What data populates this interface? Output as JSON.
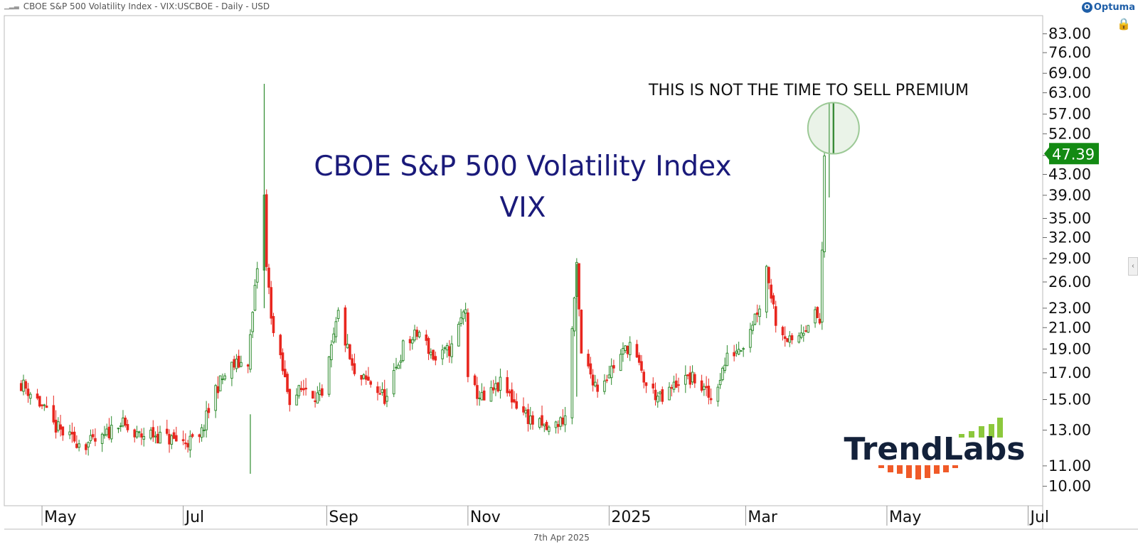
{
  "header": {
    "title": "CBOE S&P 500 Volatility Index - VIX:USCBOE - Daily - USD",
    "brand": "Optuma"
  },
  "footer": {
    "date": "7th Apr 2025"
  },
  "brand_logo": {
    "text": "TrendLabs"
  },
  "colors": {
    "up": "#2e8b2e",
    "down": "#e8261f",
    "title": "#1a1a7a",
    "last_bg": "#138a13"
  },
  "chart_data": {
    "type": "candlestick",
    "title": "CBOE S&P 500 Volatility Index",
    "subtitle": "VIX",
    "annotation": "THIS IS NOT THE TIME TO SELL PREMIUM",
    "last_value": "47.39",
    "y_scale": "log",
    "ylim": [
      9.5,
      88
    ],
    "y_ticks": [
      "83.00",
      "76.00",
      "69.00",
      "63.00",
      "57.00",
      "52.00",
      "47.00",
      "43.00",
      "39.00",
      "35.00",
      "32.00",
      "29.00",
      "26.00",
      "23.00",
      "21.00",
      "19.00",
      "17.00",
      "15.00",
      "13.00",
      "11.00",
      "10.00"
    ],
    "x_ticks": [
      "May",
      "Jul",
      "Sep",
      "Nov",
      "2025",
      "Mar",
      "May",
      "Jul"
    ],
    "x_tick_dates": [
      "2024-05-01",
      "2024-07-01",
      "2024-09-01",
      "2024-11-01",
      "2025-01-01",
      "2025-03-01",
      "2025-05-01",
      "2025-07-01"
    ],
    "series_anchors": [
      [
        "2024-04-22",
        16.2
      ],
      [
        "2024-04-29",
        15.0
      ],
      [
        "2024-05-06",
        13.3
      ],
      [
        "2024-05-13",
        12.5
      ],
      [
        "2024-05-20",
        12.2
      ],
      [
        "2024-05-27",
        12.4
      ],
      [
        "2024-06-03",
        13.6
      ],
      [
        "2024-06-10",
        12.6
      ],
      [
        "2024-06-17",
        12.8
      ],
      [
        "2024-06-24",
        12.5
      ],
      [
        "2024-07-01",
        12.3
      ],
      [
        "2024-07-08",
        12.4
      ],
      [
        "2024-07-15",
        15.8
      ],
      [
        "2024-07-22",
        17.5
      ],
      [
        "2024-07-29",
        18.0
      ],
      [
        "2024-08-05",
        38.6
      ],
      [
        "2024-08-06",
        27.7
      ],
      [
        "2024-08-09",
        20.4
      ],
      [
        "2024-08-16",
        15.1
      ],
      [
        "2024-08-23",
        15.9
      ],
      [
        "2024-08-30",
        15.0
      ],
      [
        "2024-09-06",
        22.4
      ],
      [
        "2024-09-13",
        16.6
      ],
      [
        "2024-09-20",
        16.2
      ],
      [
        "2024-09-27",
        15.0
      ],
      [
        "2024-10-04",
        19.2
      ],
      [
        "2024-10-11",
        20.5
      ],
      [
        "2024-10-18",
        18.0
      ],
      [
        "2024-10-25",
        19.1
      ],
      [
        "2024-10-31",
        23.2
      ],
      [
        "2024-11-01",
        16.2
      ],
      [
        "2024-11-08",
        14.9
      ],
      [
        "2024-11-15",
        16.1
      ],
      [
        "2024-11-22",
        14.7
      ],
      [
        "2024-11-29",
        13.5
      ],
      [
        "2024-12-06",
        13.0
      ],
      [
        "2024-12-13",
        13.8
      ],
      [
        "2024-12-18",
        27.6
      ],
      [
        "2024-12-20",
        18.4
      ],
      [
        "2024-12-27",
        15.9
      ],
      [
        "2025-01-03",
        17.6
      ],
      [
        "2025-01-10",
        19.5
      ],
      [
        "2025-01-17",
        16.0
      ],
      [
        "2025-01-24",
        14.9
      ],
      [
        "2025-01-31",
        16.4
      ],
      [
        "2025-02-07",
        16.5
      ],
      [
        "2025-02-14",
        15.0
      ],
      [
        "2025-02-21",
        18.2
      ],
      [
        "2025-02-28",
        19.6
      ],
      [
        "2025-03-07",
        23.4
      ],
      [
        "2025-03-10",
        27.9
      ],
      [
        "2025-03-14",
        21.8
      ],
      [
        "2025-03-21",
        19.3
      ],
      [
        "2025-03-28",
        21.7
      ],
      [
        "2025-03-31",
        22.3
      ],
      [
        "2025-04-02",
        21.5
      ],
      [
        "2025-04-03",
        30.0
      ],
      [
        "2025-04-04",
        45.3
      ],
      [
        "2025-04-07",
        47.39
      ]
    ],
    "final_candle": {
      "date": "2025-04-07",
      "open": 46.0,
      "high": 60.1,
      "low": 38.6,
      "close": 47.39
    }
  }
}
